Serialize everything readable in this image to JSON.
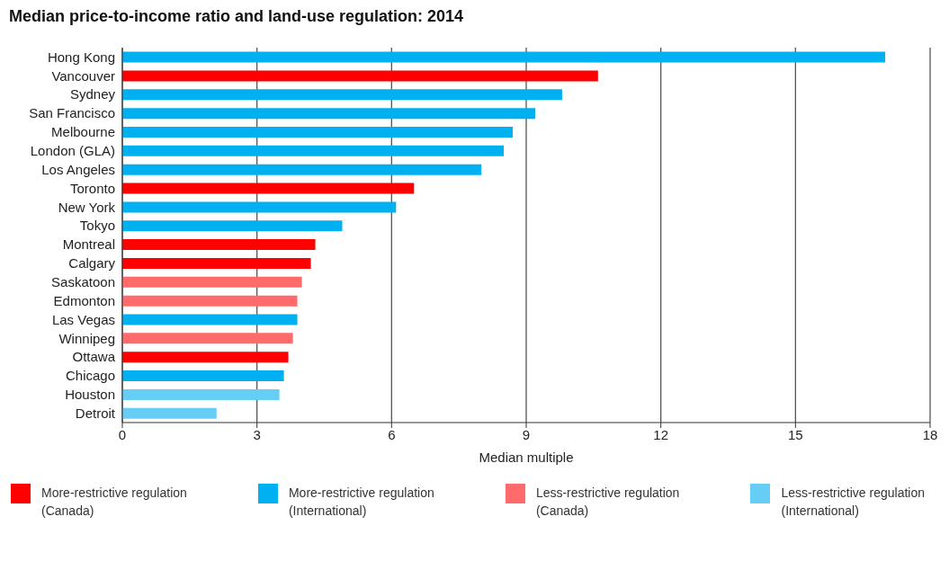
{
  "chart_data": {
    "type": "bar",
    "orientation": "horizontal",
    "stacked": true,
    "title": "Median price-to-income ratio and land-use regulation: 2014",
    "xlabel": "Median multiple",
    "categories": [
      "Hong Kong",
      "Vancouver",
      "Sydney",
      "San Francisco",
      "Melbourne",
      "London (GLA)",
      "Los Angeles",
      "Toronto",
      "New York",
      "Tokyo",
      "Montreal",
      "Calgary",
      "Saskatoon",
      "Edmonton",
      "Las Vegas",
      "Winnipeg",
      "Ottawa",
      "Chicago",
      "Houston",
      "Detroit"
    ],
    "series": [
      {
        "name": "More-restrictive regulation\n(Canada)",
        "color": "#ff0000",
        "values": [
          null,
          10.6,
          null,
          null,
          null,
          null,
          null,
          6.5,
          null,
          null,
          4.3,
          4.2,
          null,
          null,
          null,
          null,
          3.7,
          null,
          null,
          null
        ]
      },
      {
        "name": "More-restrictive regulation\n(International)",
        "color": "#00b0f0",
        "values": [
          17.0,
          null,
          9.8,
          9.2,
          8.7,
          8.5,
          8.0,
          null,
          6.1,
          4.9,
          null,
          null,
          null,
          null,
          3.9,
          null,
          null,
          3.6,
          null,
          null
        ]
      },
      {
        "name": "Less-restrictive regulation\n(Canada)",
        "color": "#ff6a6a",
        "values": [
          null,
          null,
          null,
          null,
          null,
          null,
          null,
          null,
          null,
          null,
          null,
          null,
          4.0,
          3.9,
          null,
          3.8,
          null,
          null,
          null,
          null
        ]
      },
      {
        "name": "Less-restrictive regulation\n(International)",
        "color": "#66cdf5",
        "values": [
          null,
          null,
          null,
          null,
          null,
          null,
          null,
          null,
          null,
          null,
          null,
          null,
          null,
          null,
          null,
          null,
          null,
          null,
          3.5,
          2.1
        ]
      }
    ],
    "xlim": [
      0,
      18
    ],
    "xticks": [
      0,
      3,
      6,
      9,
      12,
      15,
      18
    ],
    "grid": "x",
    "legend": "bottom"
  }
}
